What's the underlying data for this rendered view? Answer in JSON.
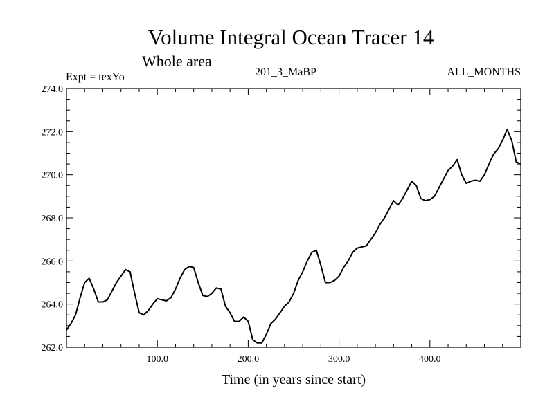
{
  "chart_data": {
    "type": "line",
    "title": "Volume Integral Ocean Tracer 14",
    "subtitle": "Whole area",
    "left_label": "Expt = texYo",
    "center_label": "201_3_MaBP",
    "right_label": "ALL_MONTHS",
    "xlabel": "Time (in years since start)",
    "ylabel": "",
    "xlim": [
      0,
      500
    ],
    "ylim": [
      262.0,
      274.0
    ],
    "x_ticks": [
      100,
      200,
      300,
      400
    ],
    "x_tick_labels": [
      "100.0",
      "200.0",
      "300.0",
      "400.0"
    ],
    "y_ticks": [
      262,
      264,
      266,
      268,
      270,
      272,
      274
    ],
    "y_tick_labels": [
      "262.0",
      "264.0",
      "266.0",
      "268.0",
      "270.0",
      "272.0",
      "274.0"
    ],
    "grid": false,
    "line_color": "#000000",
    "series": [
      {
        "x": [
          0,
          5,
          10,
          15,
          20,
          25,
          30,
          35,
          40,
          45,
          50,
          55,
          60,
          65,
          70,
          75,
          80,
          85,
          90,
          95,
          100,
          105,
          110,
          115,
          120,
          125,
          130,
          135,
          140,
          145,
          150,
          155,
          160,
          165,
          170,
          175,
          180,
          185,
          190,
          195,
          200,
          205,
          210,
          215,
          220,
          225,
          230,
          235,
          240,
          245,
          250,
          255,
          260,
          265,
          270,
          275,
          280,
          285,
          290,
          295,
          300,
          305,
          310,
          315,
          320,
          325,
          330,
          335,
          340,
          345,
          350,
          355,
          360,
          365,
          370,
          375,
          380,
          385,
          390,
          395,
          400,
          405,
          410,
          415,
          420,
          425,
          430,
          435,
          440,
          445,
          450,
          455,
          460,
          465,
          470,
          475,
          480,
          485,
          490,
          495,
          500
        ],
        "y": [
          262.8,
          263.1,
          263.5,
          264.3,
          265.0,
          265.2,
          264.7,
          264.1,
          264.1,
          264.2,
          264.6,
          265.0,
          265.3,
          265.6,
          265.5,
          264.5,
          263.6,
          263.5,
          263.7,
          264.0,
          264.25,
          264.2,
          264.15,
          264.3,
          264.7,
          265.2,
          265.6,
          265.75,
          265.7,
          265.0,
          264.4,
          264.35,
          264.5,
          264.75,
          264.7,
          263.9,
          263.6,
          263.2,
          263.2,
          263.4,
          263.2,
          262.35,
          262.2,
          262.2,
          262.6,
          263.1,
          263.3,
          263.6,
          263.9,
          264.1,
          264.5,
          265.1,
          265.5,
          266.0,
          266.4,
          266.5,
          265.8,
          265.0,
          265.0,
          265.1,
          265.3,
          265.7,
          266.0,
          266.4,
          266.6,
          266.65,
          266.7,
          267.0,
          267.3,
          267.7,
          268.0,
          268.4,
          268.8,
          268.6,
          268.9,
          269.3,
          269.7,
          269.5,
          268.9,
          268.8,
          268.85,
          269.0,
          269.4,
          269.8,
          270.2,
          270.4,
          270.7,
          270.0,
          269.6,
          269.7,
          269.75,
          269.7,
          270.0,
          270.5,
          270.95,
          271.2,
          271.6,
          272.1,
          271.6,
          270.6,
          270.5
        ]
      }
    ]
  }
}
